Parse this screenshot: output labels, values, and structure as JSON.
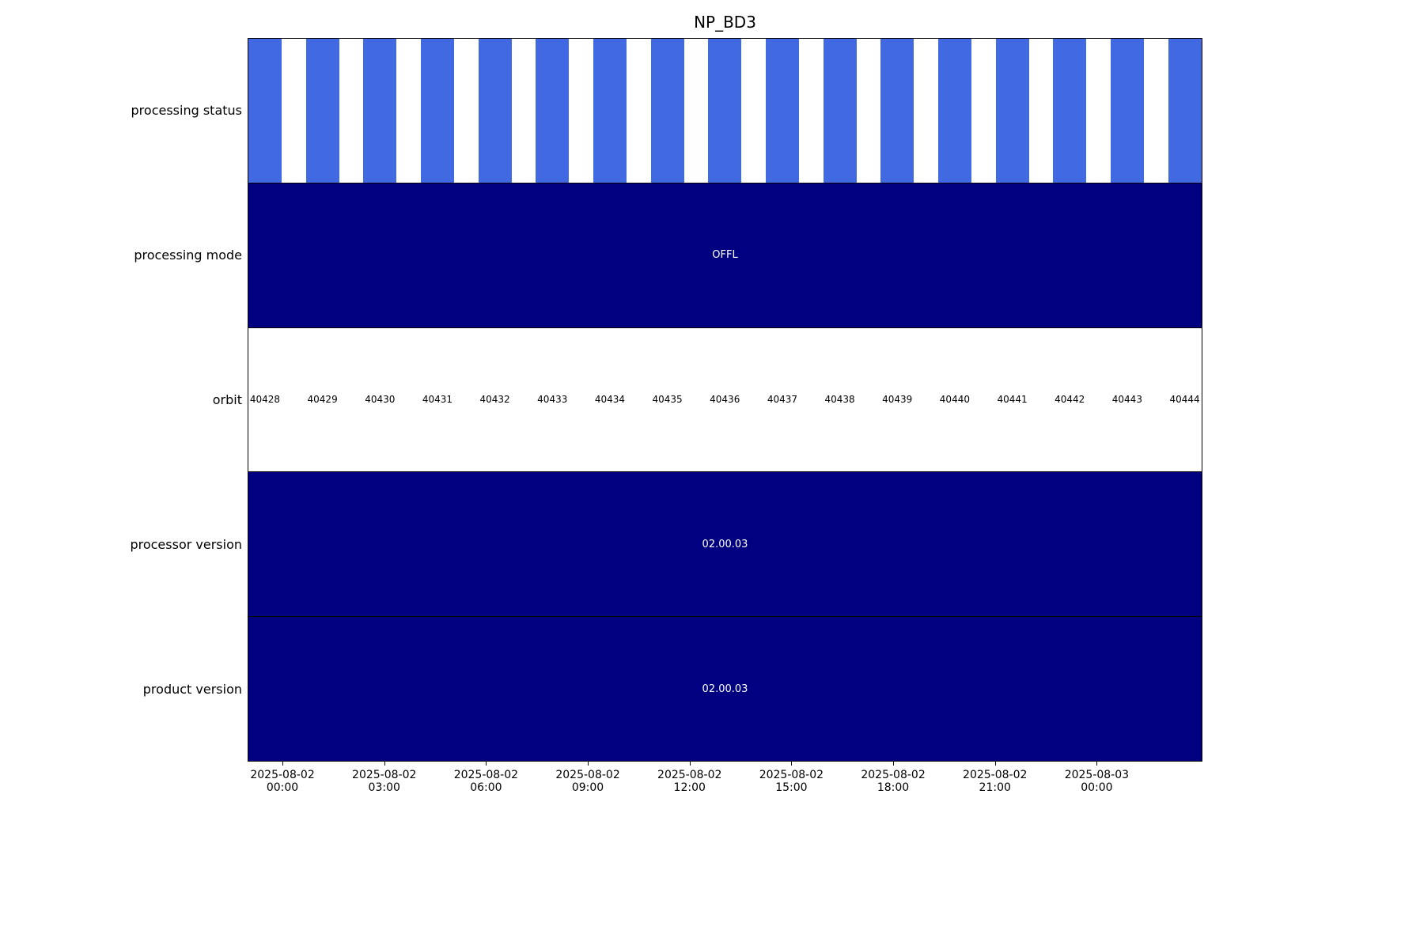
{
  "colors": {
    "stripe_blue": "#4169E1",
    "navy": "#000080",
    "text_on_dark": "#FFFFFF",
    "text": "#000000",
    "background": "#FFFFFF"
  },
  "chart_data": {
    "type": "timeline-bands",
    "title": "NP_BD3",
    "grid": false,
    "legend": "none",
    "rows": [
      {
        "label": "processing status",
        "type": "striped",
        "stripe_count": 17,
        "stripe_color": "#4169E1"
      },
      {
        "label": "processing mode",
        "type": "solid",
        "value": "OFFL",
        "color": "#000080"
      },
      {
        "label": "orbit",
        "type": "labels",
        "values": [
          "40428",
          "40429",
          "40430",
          "40431",
          "40432",
          "40433",
          "40434",
          "40435",
          "40436",
          "40437",
          "40438",
          "40439",
          "40440",
          "40441",
          "40442",
          "40443",
          "40444"
        ]
      },
      {
        "label": "processor version",
        "type": "solid",
        "value": "02.00.03",
        "color": "#000080"
      },
      {
        "label": "product version",
        "type": "solid",
        "value": "02.00.03",
        "color": "#000080"
      }
    ],
    "x_ticks": [
      {
        "date": "2025-08-02",
        "time": "00:00"
      },
      {
        "date": "2025-08-02",
        "time": "03:00"
      },
      {
        "date": "2025-08-02",
        "time": "06:00"
      },
      {
        "date": "2025-08-02",
        "time": "09:00"
      },
      {
        "date": "2025-08-02",
        "time": "12:00"
      },
      {
        "date": "2025-08-02",
        "time": "15:00"
      },
      {
        "date": "2025-08-02",
        "time": "18:00"
      },
      {
        "date": "2025-08-02",
        "time": "21:00"
      },
      {
        "date": "2025-08-03",
        "time": "00:00"
      }
    ],
    "layout": {
      "first_tick_fraction": 0.0365,
      "tick_spacing_fraction": 0.1066,
      "first_orbit_center_fraction": 0.0174,
      "orbit_spacing_fraction": 0.0603,
      "stripe_width_fraction": 0.0348
    }
  }
}
